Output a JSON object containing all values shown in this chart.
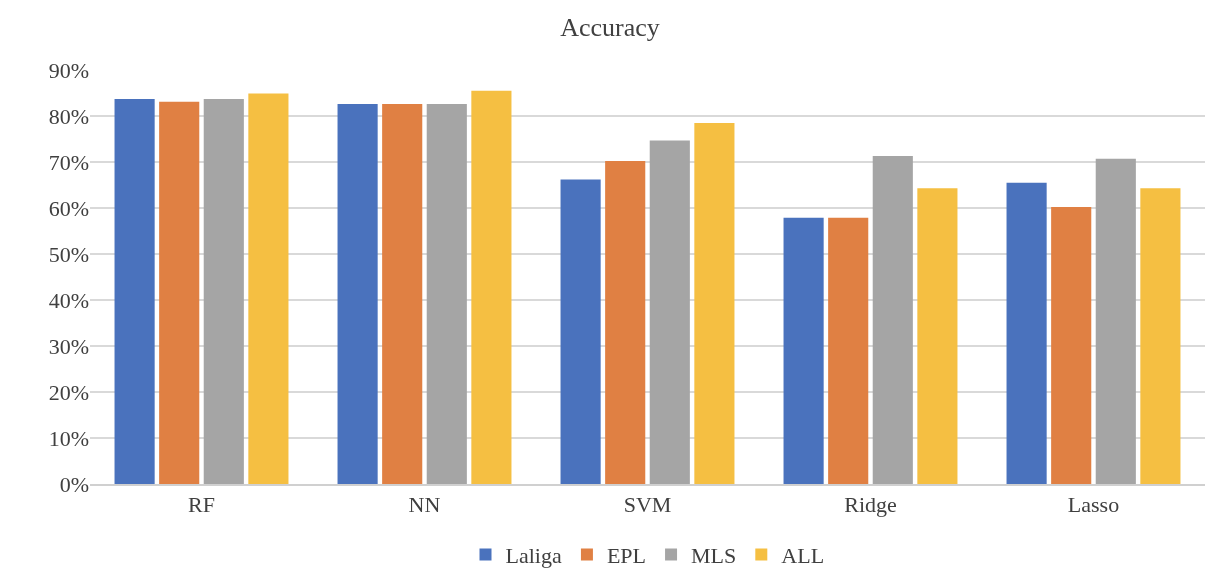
{
  "chart_data": {
    "type": "bar",
    "title": "Accuracy",
    "categories": [
      "RF",
      "NN",
      "SVM",
      "Ridge",
      "Lasso"
    ],
    "series": [
      {
        "name": "Laliga",
        "color": "#4a72bd",
        "values": [
          83.7,
          82.6,
          66.2,
          57.9,
          65.5
        ]
      },
      {
        "name": "EPL",
        "color": "#e08043",
        "values": [
          83.1,
          82.6,
          70.2,
          57.9,
          60.2
        ]
      },
      {
        "name": "MLS",
        "color": "#a5a5a5",
        "values": [
          83.7,
          82.6,
          74.7,
          71.3,
          70.7
        ]
      },
      {
        "name": "ALL",
        "color": "#f5bf42",
        "values": [
          84.9,
          85.5,
          78.5,
          64.3,
          64.3
        ]
      }
    ],
    "ylim": [
      0,
      90
    ],
    "yticks": [
      {
        "value": 0,
        "label": "0%"
      },
      {
        "value": 10,
        "label": "10%"
      },
      {
        "value": 20,
        "label": "20%"
      },
      {
        "value": 30,
        "label": "30%"
      },
      {
        "value": 40,
        "label": "40%"
      },
      {
        "value": 50,
        "label": "50%"
      },
      {
        "value": 60,
        "label": "60%"
      },
      {
        "value": 70,
        "label": "70%"
      },
      {
        "value": 80,
        "label": "80%"
      },
      {
        "value": 90,
        "label": "90%"
      }
    ],
    "grid": "y",
    "legend": "bottom"
  }
}
